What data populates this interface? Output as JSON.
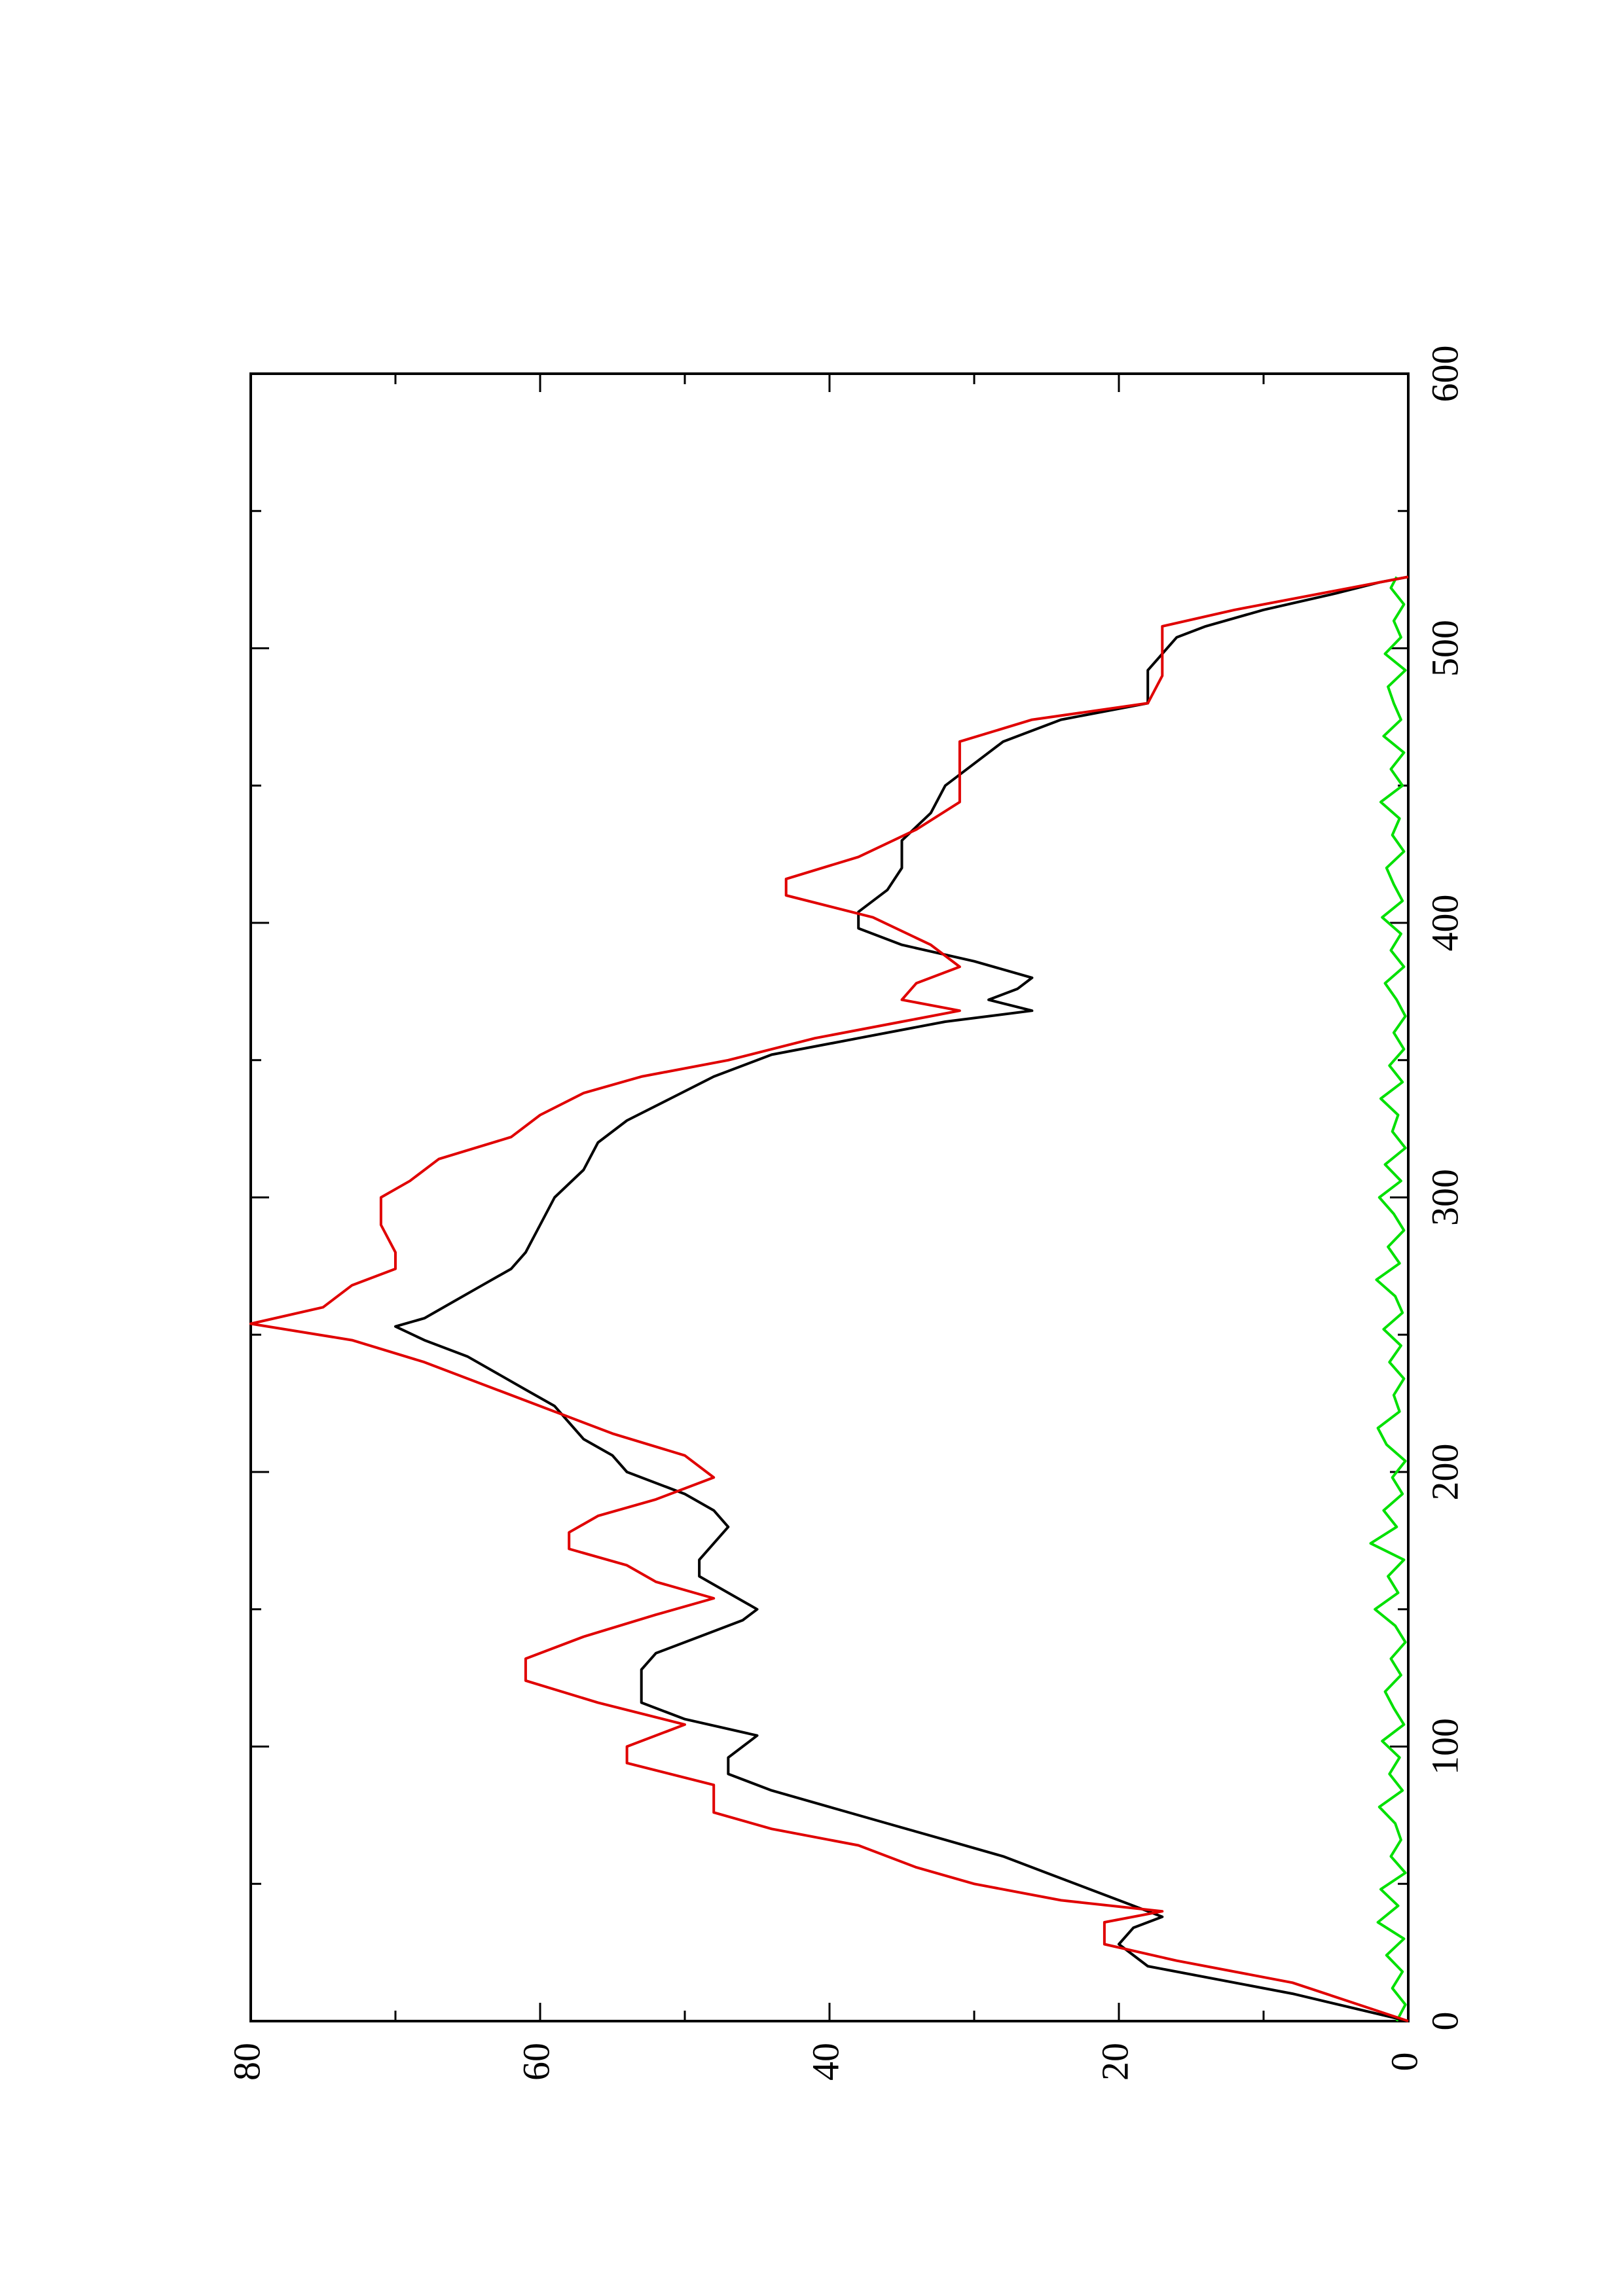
{
  "chart_data": {
    "type": "line",
    "orientation": "rotated-90-ccw",
    "title": "",
    "xlabel": "",
    "ylabel": "",
    "xlim": [
      0,
      600
    ],
    "ylim": [
      0,
      80
    ],
    "x_ticks": [
      0,
      100,
      200,
      300,
      400,
      500,
      600
    ],
    "x_tick_labels": [
      "0",
      "100",
      "200",
      "300",
      "400",
      "500",
      "600"
    ],
    "y_ticks": [
      0,
      20,
      40,
      60,
      80
    ],
    "y_tick_labels": [
      "0",
      "20",
      "40",
      "60",
      "80"
    ],
    "grid": false,
    "legend": "none",
    "series": [
      {
        "color": "#000000",
        "x": [
          0,
          10,
          20,
          28,
          34,
          38,
          42,
          48,
          54,
          60,
          66,
          72,
          78,
          84,
          90,
          96,
          100,
          104,
          110,
          116,
          122,
          128,
          134,
          140,
          146,
          150,
          156,
          162,
          168,
          174,
          180,
          186,
          192,
          200,
          206,
          212,
          218,
          224,
          230,
          236,
          242,
          248,
          253,
          256,
          262,
          268,
          274,
          280,
          290,
          300,
          310,
          320,
          328,
          336,
          344,
          352,
          358,
          364,
          368,
          372,
          376,
          380,
          386,
          392,
          398,
          404,
          412,
          420,
          430,
          440,
          450,
          458,
          466,
          474,
          480,
          486,
          492,
          498,
          504,
          508,
          514,
          520,
          524,
          526
        ],
        "values": [
          0,
          8,
          18,
          20,
          19,
          17,
          19,
          22,
          25,
          28,
          32,
          36,
          40,
          44,
          47,
          47,
          46,
          45,
          50,
          53,
          53,
          53,
          52,
          49,
          46,
          45,
          47,
          49,
          49,
          48,
          47,
          48,
          50,
          54,
          55,
          57,
          58,
          59,
          61,
          63,
          65,
          68,
          70,
          68,
          66,
          64,
          62,
          61,
          60,
          59,
          57,
          56,
          54,
          51,
          48,
          44,
          38,
          32,
          26,
          29,
          27,
          26,
          30,
          35,
          38,
          38,
          36,
          35,
          35,
          33,
          32,
          30,
          28,
          24,
          18,
          18,
          18,
          17,
          16,
          14,
          10,
          5,
          2,
          0
        ]
      },
      {
        "color": "#e00000",
        "x": [
          0,
          7,
          14,
          22,
          28,
          36,
          40,
          44,
          50,
          56,
          64,
          70,
          76,
          86,
          94,
          100,
          108,
          116,
          124,
          132,
          140,
          148,
          154,
          160,
          166,
          172,
          178,
          184,
          190,
          198,
          206,
          214,
          222,
          230,
          240,
          248,
          254,
          260,
          268,
          274,
          280,
          290,
          300,
          306,
          314,
          322,
          330,
          338,
          344,
          350,
          358,
          364,
          368,
          372,
          378,
          384,
          392,
          402,
          410,
          416,
          424,
          434,
          444,
          456,
          466,
          474,
          480,
          490,
          500,
          508,
          514,
          520,
          526
        ],
        "values": [
          0,
          4,
          8,
          16,
          21,
          21,
          17,
          24,
          30,
          34,
          38,
          44,
          48,
          48,
          54,
          54,
          50,
          56,
          61,
          61,
          57,
          52,
          48,
          52,
          54,
          58,
          58,
          56,
          52,
          48,
          50,
          55,
          59,
          63,
          68,
          73,
          80,
          75,
          73,
          70,
          70,
          71,
          71,
          69,
          67,
          62,
          60,
          57,
          53,
          47,
          41,
          35,
          31,
          35,
          34,
          31,
          33,
          37,
          43,
          43,
          38,
          34,
          31,
          31,
          31,
          26,
          18,
          17,
          17,
          17,
          12,
          6,
          0
        ]
      },
      {
        "color": "#00e000",
        "x": [
          0,
          6,
          12,
          18,
          24,
          30,
          36,
          42,
          48,
          54,
          60,
          66,
          72,
          78,
          84,
          90,
          96,
          102,
          108,
          114,
          120,
          126,
          132,
          138,
          144,
          150,
          156,
          162,
          168,
          174,
          180,
          186,
          192,
          198,
          204,
          210,
          216,
          222,
          228,
          234,
          240,
          246,
          252,
          258,
          264,
          270,
          276,
          282,
          288,
          294,
          300,
          306,
          312,
          318,
          324,
          330,
          336,
          342,
          348,
          354,
          360,
          366,
          372,
          378,
          384,
          390,
          396,
          402,
          408,
          414,
          420,
          426,
          432,
          438,
          444,
          450,
          456,
          462,
          468,
          474,
          480,
          486,
          492,
          498,
          504,
          510,
          516,
          522,
          526
        ],
        "values": [
          0.8,
          0.2,
          1.1,
          0.4,
          1.5,
          0.3,
          2.1,
          0.7,
          1.9,
          0.2,
          1.2,
          0.5,
          0.9,
          2.0,
          0.4,
          1.3,
          0.6,
          1.8,
          0.3,
          1.0,
          1.6,
          0.5,
          1.2,
          0.2,
          0.9,
          2.3,
          0.7,
          1.4,
          0.3,
          2.6,
          0.8,
          1.7,
          0.4,
          1.1,
          0.2,
          1.5,
          2.1,
          0.6,
          1.0,
          0.3,
          1.3,
          0.5,
          1.7,
          0.4,
          0.9,
          2.2,
          0.6,
          1.4,
          0.3,
          1.0,
          2.0,
          0.5,
          1.6,
          0.2,
          1.1,
          0.7,
          1.9,
          0.4,
          1.3,
          0.3,
          1.0,
          0.2,
          0.8,
          1.6,
          0.3,
          1.2,
          0.5,
          1.8,
          0.4,
          1.0,
          1.5,
          0.3,
          1.1,
          0.6,
          1.9,
          0.4,
          1.2,
          0.3,
          1.7,
          0.5,
          1.0,
          1.4,
          0.2,
          1.6,
          0.5,
          1.0,
          0.3,
          1.2,
          0.8
        ]
      }
    ]
  }
}
